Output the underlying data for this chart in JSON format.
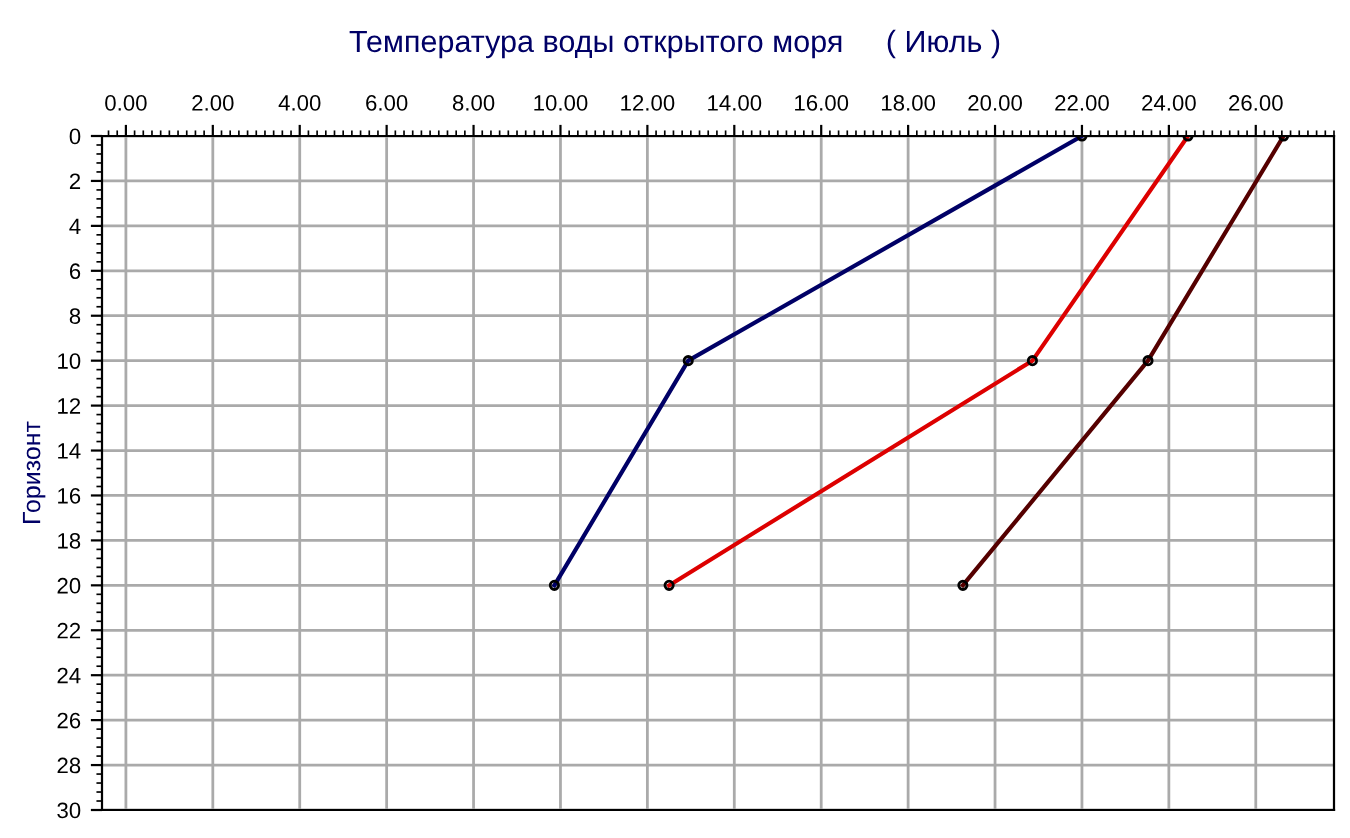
{
  "chart_data": {
    "type": "line",
    "title": "Температура воды открытого моря     ( Июль )",
    "ylabel": "Горизонт",
    "series": [
      {
        "color": "#000066",
        "x": [
          22.0,
          12.94,
          9.86
        ],
        "values": [
          0,
          10,
          20
        ]
      },
      {
        "color": "#dd0000",
        "x": [
          24.44,
          20.86,
          12.5
        ],
        "values": [
          0,
          10,
          20
        ]
      },
      {
        "color": "#550000",
        "x": [
          26.64,
          23.52,
          19.26
        ],
        "values": [
          0,
          10,
          20
        ]
      }
    ],
    "xlim": [
      -0.55,
      27.8
    ],
    "xticks": [
      {
        "value": 0,
        "label": "0.00"
      },
      {
        "value": 2,
        "label": "2.00"
      },
      {
        "value": 4,
        "label": "4.00"
      },
      {
        "value": 6,
        "label": "6.00"
      },
      {
        "value": 8,
        "label": "8.00"
      },
      {
        "value": 10,
        "label": "10.00"
      },
      {
        "value": 12,
        "label": "12.00"
      },
      {
        "value": 14,
        "label": "14.00"
      },
      {
        "value": 16,
        "label": "16.00"
      },
      {
        "value": 18,
        "label": "18.00"
      },
      {
        "value": 20,
        "label": "20.00"
      },
      {
        "value": 22,
        "label": "22.00"
      },
      {
        "value": 24,
        "label": "24.00"
      },
      {
        "value": 26,
        "label": "26.00"
      }
    ],
    "ylim": [
      30,
      0
    ],
    "yticks": [
      0,
      2,
      4,
      6,
      8,
      10,
      12,
      14,
      16,
      18,
      20,
      22,
      24,
      26,
      28,
      30
    ],
    "grid": true,
    "marker": "circle",
    "line_style": "solid"
  }
}
